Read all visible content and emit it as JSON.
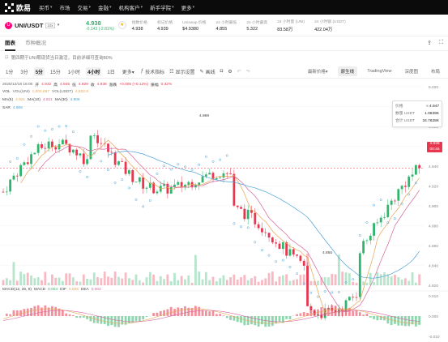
{
  "topnav": {
    "logo_text": "欧易",
    "items": [
      {
        "label": "买币",
        "caret": true
      },
      {
        "label": "市场",
        "caret": false
      },
      {
        "label": "交易",
        "caret": true
      },
      {
        "label": "金融",
        "caret": true
      },
      {
        "label": "机构客户",
        "caret": true
      },
      {
        "label": "新手学院",
        "caret": true
      },
      {
        "label": "更多",
        "caret": true
      }
    ]
  },
  "ticker": {
    "coin_letter": "U",
    "pair": "UNI/USDT",
    "tag": "10x",
    "price": "4.938",
    "change": "-0.143 (-2.81%)",
    "stats": [
      {
        "label": "指数价格",
        "value": "4.938"
      },
      {
        "label": "标记价格",
        "value": "4.939"
      },
      {
        "label": "Uniswap 价格",
        "value": "$4.9380"
      },
      {
        "label": "24 小时最低",
        "value": "4.855"
      },
      {
        "label": "24 小时最高",
        "value": "5.322"
      },
      {
        "label": "24 小时量 (UNI)",
        "value": "83.58万"
      },
      {
        "label": "24 小时额 (USDT)",
        "value": "422.04万"
      }
    ]
  },
  "tabs": [
    {
      "label": "图表",
      "active": true
    },
    {
      "label": "币种概况",
      "active": false
    }
  ],
  "notice": "第四期于UNI期现货当日激活，目前详细可查询80%",
  "toolbar": {
    "timeframes": [
      {
        "label": "1分",
        "active": false
      },
      {
        "label": "3分",
        "active": false
      },
      {
        "label": "5分",
        "active": true
      },
      {
        "label": "15分",
        "active": false
      },
      {
        "label": "1小时",
        "active": false
      },
      {
        "label": "4小时",
        "active": true
      },
      {
        "label": "1日",
        "active": false
      }
    ],
    "more_label": "更多",
    "tools": [
      "技术指标",
      "显示设置",
      "画线"
    ],
    "views": [
      {
        "label": "最新价格",
        "active": false
      },
      {
        "label": "原生线",
        "active": true
      },
      {
        "label": "TradingView",
        "active": false
      },
      {
        "label": "深度图",
        "active": false
      },
      {
        "label": "布局",
        "active": false
      }
    ]
  },
  "legend": {
    "ohlc": {
      "date": "2025/12/18 16:00",
      "open_label": "开",
      "open": "4.932",
      "high_label": "高",
      "high": "4.945",
      "low_label": "低",
      "low": "4.929",
      "close_label": "收",
      "close": "4.938",
      "change_label": "涨跌",
      "change": "+0.005 (+0.12%)",
      "amp_label": "振幅",
      "amp": "0.32%"
    },
    "vol": {
      "label": "VOL",
      "v1_label": "VOL(UNI)",
      "v1": "1,002.697",
      "v2_label": "VOL(USDT)",
      "v2": "4,932.8"
    },
    "ma": [
      {
        "label": "MA(5)",
        "value": "4.921",
        "color": "#e9a34f"
      },
      {
        "label": "MA(10)",
        "value": "4.921",
        "color": "#d6649c"
      },
      {
        "label": "MA(30)",
        "value": "4.906",
        "color": "#4ba3d6"
      }
    ],
    "sar": {
      "label": "SAR",
      "value": "4.906"
    },
    "macd": {
      "label": "MACD(12, 26, 9)",
      "macd_label": "MACD",
      "macd": "0.004",
      "dif_label": "DIF",
      "dif": "0.006",
      "dea_label": "DEA",
      "dea": "0.002"
    }
  },
  "tooltip": {
    "price_label": "价格",
    "price": "≈ 4.947",
    "qty_label": "数量 USDT",
    "qty": "1.0839K",
    "total_label": "合计 USDT",
    "total": "34.7628K"
  },
  "price_tag": {
    "price": "4.938",
    "countdown": "00:45"
  },
  "annotations": {
    "high": "4.989",
    "low": "4.855"
  },
  "axis": {
    "price_ticks": [
      "5.020",
      "5.000",
      "4.980",
      "4.960",
      "4.940",
      "4.920",
      "4.900",
      "4.880",
      "4.860",
      "4.840",
      "4.820"
    ],
    "macd_ticks": [
      "0.010",
      "0.000",
      "-0.010"
    ]
  },
  "colors": {
    "up": "#2fb56c",
    "down": "#e8364f",
    "accent": "#f5b700"
  }
}
